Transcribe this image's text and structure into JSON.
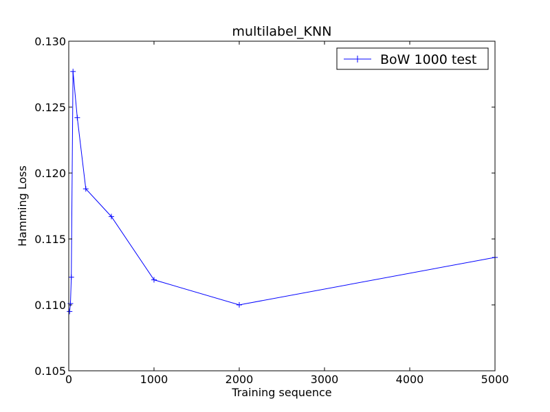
{
  "chart_data": {
    "type": "line",
    "title": "multilabel_KNN",
    "xlabel": "Training sequence",
    "ylabel": "Hamming Loss",
    "xlim": [
      0,
      5000
    ],
    "ylim": [
      0.105,
      0.13
    ],
    "x_ticks": [
      "0",
      "1000",
      "2000",
      "3000",
      "4000",
      "5000"
    ],
    "y_ticks": [
      "0.105",
      "0.110",
      "0.115",
      "0.120",
      "0.125",
      "0.130"
    ],
    "grid": false,
    "legend_position": "top-right",
    "series": [
      {
        "name": "BoW 1000 test",
        "color": "#0000ff",
        "marker": "+",
        "x": [
          10,
          20,
          30,
          50,
          100,
          200,
          500,
          1000,
          2000,
          5000
        ],
        "y": [
          0.1095,
          0.1101,
          0.1121,
          0.1277,
          0.1242,
          0.1188,
          0.1167,
          0.1119,
          0.11,
          0.1136
        ]
      }
    ]
  }
}
